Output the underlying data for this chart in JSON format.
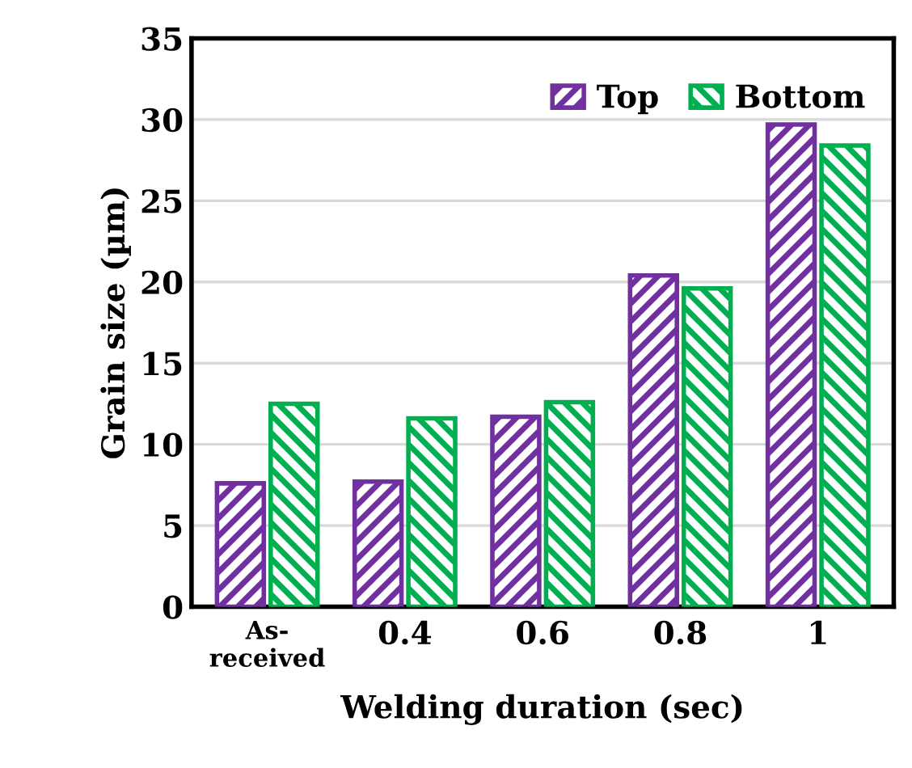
{
  "chart_data": {
    "type": "bar",
    "xlabel": "Welding duration (sec)",
    "ylabel": "Grain size (µm)",
    "categories": [
      "As-\nreceived",
      "0.4",
      "0.6",
      "0.8",
      "1"
    ],
    "series": [
      {
        "name": "Top",
        "color": "#7030a0",
        "values": [
          7.6,
          7.7,
          11.7,
          20.4,
          29.7
        ]
      },
      {
        "name": "Bottom",
        "color": "#00b050",
        "values": [
          12.5,
          11.6,
          12.6,
          19.6,
          28.4
        ]
      }
    ],
    "ylim": [
      0,
      35
    ],
    "yticks": [
      0,
      5,
      10,
      15,
      20,
      25,
      30,
      35
    ],
    "grid": "y",
    "legend": "top right"
  }
}
